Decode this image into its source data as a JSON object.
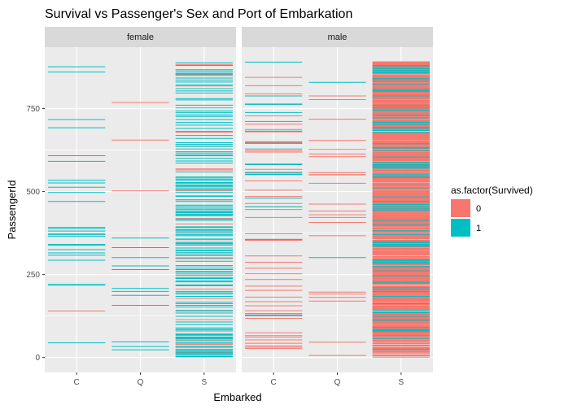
{
  "chart_data": {
    "type": "segment",
    "title": "Survival vs Passenger's Sex and Port of Embarkation",
    "xlabel": "Embarked",
    "ylabel": "PassengerId",
    "facets": [
      "female",
      "male"
    ],
    "categories": [
      "C",
      "Q",
      "S"
    ],
    "y_ticks": [
      0,
      250,
      500,
      750
    ],
    "ylim": [
      -45,
      935
    ],
    "grid": true,
    "legend": {
      "title": "as.factor(Survived)",
      "position": "right",
      "entries": [
        {
          "label": "0",
          "color": "#F8766D"
        },
        {
          "label": "1",
          "color": "#00BFC4"
        }
      ]
    },
    "data": {
      "female": {
        "C": {
          "0": [
            140,
            373
          ],
          "1": [
            44,
            218,
            220,
            293,
            308,
            315,
            325,
            338,
            341,
            365,
            370,
            381,
            388,
            392,
            470,
            497,
            513,
            526,
            534,
            591,
            608,
            692,
            717,
            860,
            876
          ]
        },
        "Q": {
          "0": [
            265,
            502,
            655,
            768
          ],
          "1": [
            23,
            33,
            47,
            157,
            187,
            199,
            208,
            265,
            276,
            301,
            331,
            360
          ]
        },
        "S": {
          "0": [
            15,
            19,
            25,
            39,
            41,
            50,
            72,
            114,
            139,
            178,
            206,
            238,
            252,
            298,
            312,
            355,
            375,
            402,
            419,
            475,
            502,
            537,
            565,
            568,
            637,
            679,
            818,
            853,
            883
          ],
          "1": [
            2,
            4,
            9,
            10,
            12,
            16,
            20,
            24,
            31,
            33,
            44,
            53,
            57,
            59,
            62,
            67,
            69,
            80,
            84,
            85,
            89,
            99,
            107,
            124,
            134,
            142,
            152,
            157,
            162,
            167,
            184,
            191,
            195,
            199,
            216,
            219,
            228,
            231,
            238,
            241,
            248,
            257,
            259,
            265,
            269,
            276,
            277,
            290,
            300,
            307,
            312,
            317,
            322,
            324,
            330,
            338,
            342,
            344,
            347,
            357,
            367,
            370,
            376,
            381,
            384,
            385,
            391,
            394,
            413,
            417,
            427,
            430,
            432,
            436,
            438,
            441,
            446,
            450,
            455,
            459,
            470,
            475,
            485,
            487,
            497,
            505,
            509,
            514,
            517,
            519,
            524,
            527,
            534,
            541,
            544,
            559,
            586,
            592,
            600,
            608,
            610,
            616,
            620,
            628,
            636,
            642,
            647,
            660,
            669,
            681,
            690,
            700,
            708,
            717,
            726,
            731,
            738,
            743,
            752,
            760,
            776,
            780,
            797,
            803,
            810,
            821,
            830,
            836,
            842,
            850,
            854,
            857,
            863,
            867,
            880,
            888
          ]
        }
      },
      "male": {
        "C": {
          "0": [
            27,
            31,
            35,
            43,
            53,
            61,
            66,
            74,
            118,
            126,
            128,
            141,
            156,
            168,
            182,
            202,
            215,
            235,
            252,
            269,
            287,
            306,
            353,
            356,
            373,
            422,
            446,
            454,
            464,
            485,
            504,
            532,
            558,
            567,
            583,
            619,
            623,
            647,
            680,
            687,
            703,
            728,
            764,
            794,
            819,
            844
          ],
          "1": [
            126,
            132,
            356,
            454,
            480,
            551,
            552,
            556,
            581,
            628,
            645,
            650,
            682,
            711,
            738,
            762,
            788,
            890
          ]
        },
        "Q": {
          "0": [
            6,
            46,
            170,
            181,
            191,
            197,
            367,
            407,
            422,
            430,
            441,
            462,
            525,
            550,
            551,
            557,
            605,
            613,
            627,
            654,
            718,
            777,
            788
          ],
          "1": [
            301,
            829
          ]
        },
        "S": {
          "0": [
            1,
            5,
            7,
            8,
            13,
            14,
            17,
            18,
            21,
            22,
            26,
            28,
            30,
            34,
            36,
            37,
            38,
            42,
            45,
            48,
            51,
            52,
            55,
            58,
            60,
            63,
            64,
            68,
            70,
            71,
            73,
            75,
            76,
            77,
            78,
            81,
            82,
            83,
            86,
            87,
            88,
            90,
            91,
            92,
            93,
            94,
            95,
            96,
            97,
            98,
            101,
            102,
            103,
            104,
            105,
            106,
            108,
            109,
            110,
            111,
            112,
            113,
            115,
            116,
            117,
            119,
            120,
            121,
            122,
            123,
            125,
            127,
            129,
            130,
            131,
            133,
            135,
            136,
            137,
            138,
            143,
            144,
            145,
            146,
            147,
            148,
            149,
            150,
            151,
            153,
            154,
            155,
            158,
            159,
            160,
            161,
            163,
            164,
            165,
            166,
            169,
            171,
            172,
            173,
            174,
            175,
            176,
            177,
            179,
            180,
            183,
            185,
            186,
            188,
            189,
            190,
            192,
            193,
            194,
            196,
            198,
            200,
            201,
            203,
            204,
            205,
            207,
            209,
            210,
            211,
            212,
            213,
            214,
            217,
            221,
            222,
            223,
            224,
            225,
            226,
            227,
            229,
            230,
            232,
            233,
            234,
            236,
            237,
            239,
            240,
            242,
            243,
            244,
            245,
            246,
            247,
            249,
            250,
            251,
            253,
            254,
            255,
            256,
            258,
            260,
            261,
            262,
            263,
            264,
            266,
            267,
            268,
            270,
            271,
            272,
            273,
            274,
            275,
            278,
            279,
            280,
            281,
            282,
            283,
            284,
            285,
            286,
            288,
            289,
            291,
            292,
            294,
            295,
            296,
            297,
            299,
            302,
            303,
            304,
            305,
            309,
            310,
            311,
            313,
            314,
            316,
            318,
            319,
            320,
            321,
            323,
            326,
            327,
            328,
            329,
            332,
            333,
            334,
            335,
            336,
            337,
            339,
            340,
            343,
            345,
            346,
            348,
            349,
            350,
            351,
            352,
            354,
            358,
            359,
            361,
            362,
            363,
            364,
            366,
            368,
            369,
            371,
            372,
            374,
            377,
            378,
            379,
            380,
            382,
            383,
            386,
            387,
            389,
            390,
            393,
            395,
            396,
            397,
            398,
            399,
            400,
            401,
            403,
            404,
            405,
            406,
            408,
            409,
            410,
            411,
            412,
            414,
            415,
            416,
            418,
            420,
            421,
            423,
            424,
            425,
            426,
            428,
            429,
            431,
            433,
            434,
            435,
            437,
            439,
            440,
            442,
            443,
            444,
            445,
            447,
            448,
            449,
            451,
            452,
            453,
            456,
            457,
            458,
            460,
            461,
            463,
            465,
            466,
            467,
            468,
            469,
            471,
            472,
            473,
            474,
            476,
            477,
            478,
            479,
            481,
            482,
            483,
            484,
            486,
            488,
            489,
            490,
            491,
            492,
            493,
            494,
            495,
            496,
            498,
            499,
            500,
            501,
            503,
            506,
            507,
            508,
            510,
            511,
            512,
            515,
            516,
            518,
            520,
            521,
            522,
            523,
            528,
            529,
            530,
            531,
            533,
            535,
            536,
            538,
            539,
            540,
            542,
            543,
            545,
            546,
            547,
            548,
            549,
            553,
            554,
            555,
            557,
            560,
            561,
            562,
            563,
            564,
            566,
            569,
            570,
            571,
            572,
            573,
            574,
            575,
            576,
            577,
            578,
            579,
            580,
            582,
            584,
            585,
            587,
            588,
            589,
            590,
            593,
            594,
            595,
            596,
            597,
            598,
            599,
            601,
            602,
            603,
            604,
            606,
            607,
            609,
            611,
            612,
            614,
            615,
            617,
            618,
            621,
            622,
            624,
            625,
            626,
            629,
            630,
            631,
            632,
            633,
            634,
            635,
            638,
            639,
            640,
            641,
            643,
            644,
            646,
            648,
            649,
            651,
            652,
            653,
            656,
            657,
            658,
            659,
            661,
            662,
            663,
            664,
            665,
            666,
            667,
            668,
            670,
            671,
            672,
            673,
            674,
            675,
            676,
            677,
            678,
            683,
            684,
            685,
            686,
            688,
            689,
            691,
            693,
            694,
            695,
            696,
            697,
            698,
            699,
            701,
            702,
            704,
            705,
            706,
            707,
            709,
            710,
            712,
            713,
            714,
            715,
            716,
            719,
            720,
            721,
            722,
            723,
            724,
            725,
            727,
            729,
            730,
            732,
            733,
            734,
            735,
            736,
            737,
            739,
            740,
            741,
            742,
            744,
            745,
            746,
            747,
            748,
            749,
            750,
            751,
            753,
            754,
            755,
            756,
            757,
            758,
            759,
            761,
            763,
            765,
            766,
            767,
            769,
            770,
            771,
            772,
            773,
            774,
            775,
            778,
            779,
            781,
            782,
            783,
            784,
            785,
            786,
            787,
            789,
            790,
            791,
            792,
            793,
            795,
            796,
            798,
            799,
            800,
            801,
            802,
            804,
            805,
            806,
            807,
            808,
            809,
            811,
            812,
            813,
            814,
            815,
            816,
            817,
            820,
            822,
            823,
            824,
            825,
            826,
            827,
            828,
            831,
            832,
            833,
            834,
            835,
            837,
            838,
            839,
            840,
            841,
            843,
            845,
            846,
            847,
            848,
            849,
            851,
            852,
            855,
            856,
            858,
            859,
            861,
            862,
            864,
            865,
            866,
            868,
            869,
            870,
            871,
            872,
            873,
            874,
            875,
            877,
            878,
            879,
            881,
            882,
            884,
            885,
            886,
            887,
            889,
            891
          ],
          "1": [
            24,
            56,
            66,
            79,
            80,
            82,
            84,
            90,
            112,
            113,
            124,
            135,
            142,
            162,
            184,
            199,
            205,
            210,
            224,
            227,
            246,
            261,
            273,
            274,
            283,
            287,
            288,
            292,
            294,
            335,
            338,
            341,
            346,
            349,
            370,
            382,
            399,
            413,
            444,
            448,
            454,
            461,
            470,
            484,
            511,
            524,
            542,
            545,
            551,
            570,
            573,
            577,
            580,
            581,
            588,
            604,
            622,
            631,
            633,
            644,
            679,
            684,
            691,
            693,
            702,
            708,
            709,
            722,
            730,
            745,
            752,
            760,
            788,
            802,
            804,
            808,
            822,
            832,
            839,
            840,
            858,
            860,
            865,
            870,
            876,
            880
          ]
        }
      }
    }
  }
}
